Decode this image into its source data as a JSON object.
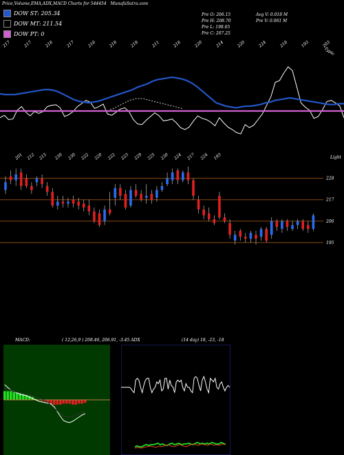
{
  "header": {
    "title": "Price,Volume,EMA,ADX,MACD Charts for 544454",
    "site": "MunafaSutra.com"
  },
  "legend": [
    {
      "label": "DOW ST: 205.34",
      "color": "#2457c9"
    },
    {
      "label": "DOW MT: 211.54",
      "color": "#000000"
    },
    {
      "label": "DOW PT: 0",
      "color": "#d060d0"
    }
  ],
  "price_info": {
    "open": "Pre O: 206.15",
    "high": "Pre H: 208.70",
    "low": "Pre L: 198.65",
    "close": "Pre C: 207.25",
    "avg_vol": "Avg V: 0.018 M",
    "pre_vol": "Pre V: 0.061 M"
  },
  "panel_labels": {
    "macd": "MACD:",
    "macd_values": "( 12,26,9 ) 208.46, 206.91, -3.45 ADX",
    "adx_values": "(14 day) 18, -23, -18",
    "top_right": "Typic",
    "top_right2": "Light"
  },
  "chart_data": [
    {
      "type": "line",
      "name": "EMA panel",
      "top_tick_labels": [
        "217",
        "217",
        "216",
        "217",
        "216",
        "218",
        "218",
        "211",
        "216",
        "220",
        "214",
        "220",
        "224",
        "218",
        "193",
        "203"
      ],
      "y_levels": [],
      "series": [
        {
          "name": "",
          "color": "#ffffff",
          "values": [
            38,
            42,
            35,
            36,
            50,
            56,
            47,
            41,
            48,
            45,
            48,
            56,
            58,
            59,
            54,
            40,
            43,
            48,
            56,
            61,
            66,
            63,
            53,
            56,
            60,
            44,
            42,
            47,
            52,
            54,
            48,
            35,
            28,
            27,
            34,
            40,
            46,
            41,
            33,
            34,
            36,
            30,
            22,
            19,
            23,
            33,
            41,
            37,
            35,
            31,
            25,
            38,
            30,
            23,
            19,
            14,
            12,
            27,
            22,
            26,
            35,
            44,
            58,
            72,
            95,
            98,
            110,
            120,
            114,
            88,
            62,
            55,
            50,
            37,
            40,
            51,
            64,
            66,
            62,
            57,
            38
          ]
        },
        {
          "name": "",
          "color": "#2457c9",
          "values": [
            60,
            61,
            61,
            61,
            60,
            59,
            58,
            57,
            56,
            55,
            55,
            56,
            58,
            61,
            64,
            67,
            69,
            70,
            71,
            70,
            69,
            67,
            65,
            63,
            61,
            59,
            57,
            55,
            52,
            50,
            48,
            45,
            43,
            42,
            41,
            40,
            41,
            42,
            44,
            47,
            51,
            56,
            61,
            66,
            71,
            73,
            75,
            76,
            77,
            76,
            75,
            75,
            74,
            73,
            71,
            70,
            68,
            67,
            66,
            65,
            66,
            67,
            68,
            69,
            70,
            71,
            72,
            73,
            73,
            72,
            72
          ]
        },
        {
          "name": "",
          "color": "#cccccc",
          "values": [
            75,
            74,
            72,
            70,
            68,
            66,
            64,
            62,
            60,
            58,
            57,
            56,
            55,
            55,
            55,
            55,
            56,
            57,
            58,
            59,
            60,
            61,
            62,
            63,
            64,
            65,
            66,
            67,
            68,
            69,
            70,
            71,
            72,
            73
          ]
        },
        {
          "name": "",
          "color": "#d060d0",
          "values": [
            61,
            61,
            61,
            61,
            61,
            61,
            61,
            61,
            61,
            61,
            61
          ]
        }
      ]
    },
    {
      "type": "candlestick",
      "name": "Price panel",
      "top_tick_labels": [
        "201",
        "212",
        "215",
        "230",
        "230",
        "222",
        "220",
        "222",
        "223",
        "229",
        "225",
        "230",
        "224",
        "217",
        "224",
        "193"
      ],
      "y_labels": [
        "228",
        "217",
        "206",
        "195"
      ],
      "y_values": [
        228,
        217,
        206,
        195
      ],
      "ylim": [
        190,
        236
      ],
      "candles": [
        {
          "o": 222,
          "c": 226,
          "h": 229,
          "l": 220,
          "up": true
        },
        {
          "o": 229,
          "c": 227,
          "h": 232,
          "l": 225,
          "up": false
        },
        {
          "o": 227,
          "c": 230,
          "h": 233,
          "l": 224,
          "up": true
        },
        {
          "o": 231,
          "c": 224,
          "h": 233,
          "l": 222,
          "up": false
        },
        {
          "o": 228,
          "c": 224,
          "h": 230,
          "l": 223,
          "up": false
        },
        {
          "o": 224,
          "c": 222,
          "h": 226,
          "l": 220,
          "up": false
        },
        {
          "o": 226,
          "c": 228,
          "h": 229,
          "l": 224,
          "up": true
        },
        {
          "o": 228,
          "c": 225,
          "h": 230,
          "l": 223,
          "up": false
        },
        {
          "o": 224,
          "c": 221,
          "h": 226,
          "l": 219,
          "up": false
        },
        {
          "o": 221,
          "c": 214,
          "h": 223,
          "l": 213,
          "up": false
        },
        {
          "o": 214,
          "c": 216,
          "h": 219,
          "l": 212,
          "up": true
        },
        {
          "o": 216,
          "c": 215,
          "h": 219,
          "l": 213,
          "up": false
        },
        {
          "o": 215,
          "c": 216,
          "h": 218,
          "l": 213,
          "up": true
        },
        {
          "o": 217,
          "c": 215,
          "h": 219,
          "l": 213,
          "up": false
        },
        {
          "o": 216,
          "c": 214,
          "h": 218,
          "l": 212,
          "up": false
        },
        {
          "o": 215,
          "c": 213,
          "h": 217,
          "l": 211,
          "up": false
        },
        {
          "o": 214,
          "c": 211,
          "h": 217,
          "l": 209,
          "up": false
        },
        {
          "o": 211,
          "c": 206,
          "h": 213,
          "l": 205,
          "up": false
        },
        {
          "o": 210,
          "c": 204,
          "h": 212,
          "l": 203,
          "up": false
        },
        {
          "o": 206,
          "c": 212,
          "h": 214,
          "l": 204,
          "up": true
        },
        {
          "o": 212,
          "c": 210,
          "h": 221,
          "l": 209,
          "up": false
        },
        {
          "o": 218,
          "c": 223,
          "h": 225,
          "l": 214,
          "up": true
        },
        {
          "o": 223,
          "c": 219,
          "h": 225,
          "l": 217,
          "up": false
        },
        {
          "o": 220,
          "c": 213,
          "h": 222,
          "l": 212,
          "up": false
        },
        {
          "o": 214,
          "c": 222,
          "h": 224,
          "l": 213,
          "up": true
        },
        {
          "o": 222,
          "c": 219,
          "h": 225,
          "l": 218,
          "up": false
        },
        {
          "o": 220,
          "c": 217,
          "h": 222,
          "l": 216,
          "up": false
        },
        {
          "o": 218,
          "c": 219,
          "h": 225,
          "l": 215,
          "up": true
        },
        {
          "o": 220,
          "c": 217,
          "h": 222,
          "l": 215,
          "up": false
        },
        {
          "o": 218,
          "c": 222,
          "h": 224,
          "l": 216,
          "up": true
        },
        {
          "o": 222,
          "c": 224,
          "h": 226,
          "l": 221,
          "up": true
        },
        {
          "o": 225,
          "c": 228,
          "h": 231,
          "l": 224,
          "up": true
        },
        {
          "o": 227,
          "c": 231,
          "h": 233,
          "l": 225,
          "up": true
        },
        {
          "o": 232,
          "c": 227,
          "h": 233,
          "l": 225,
          "up": false
        },
        {
          "o": 227,
          "c": 231,
          "h": 232,
          "l": 226,
          "up": true
        },
        {
          "o": 231,
          "c": 227,
          "h": 234,
          "l": 225,
          "up": false
        },
        {
          "o": 227,
          "c": 219,
          "h": 228,
          "l": 217,
          "up": false
        },
        {
          "o": 217,
          "c": 212,
          "h": 219,
          "l": 210,
          "up": false
        },
        {
          "o": 212,
          "c": 209,
          "h": 214,
          "l": 207,
          "up": false
        },
        {
          "o": 210,
          "c": 207,
          "h": 213,
          "l": 206,
          "up": false
        },
        {
          "o": 207,
          "c": 205,
          "h": 209,
          "l": 204,
          "up": false
        },
        {
          "o": 219,
          "c": 208,
          "h": 221,
          "l": 207,
          "up": false
        },
        {
          "o": 208,
          "c": 206,
          "h": 210,
          "l": 205,
          "up": false
        },
        {
          "o": 205,
          "c": 199,
          "h": 207,
          "l": 197,
          "up": false
        },
        {
          "o": 196,
          "c": 199,
          "h": 201,
          "l": 194,
          "up": true
        },
        {
          "o": 201,
          "c": 198,
          "h": 202,
          "l": 196,
          "up": false
        },
        {
          "o": 198,
          "c": 197,
          "h": 200,
          "l": 195,
          "up": false
        },
        {
          "o": 197,
          "c": 200,
          "h": 201,
          "l": 195,
          "up": true
        },
        {
          "o": 199,
          "c": 197,
          "h": 201,
          "l": 194,
          "up": false
        },
        {
          "o": 198,
          "c": 202,
          "h": 203,
          "l": 196,
          "up": true
        },
        {
          "o": 202,
          "c": 196,
          "h": 203,
          "l": 195,
          "up": false
        },
        {
          "o": 199,
          "c": 206,
          "h": 208,
          "l": 197,
          "up": true
        },
        {
          "o": 206,
          "c": 203,
          "h": 207,
          "l": 201,
          "up": false
        },
        {
          "o": 202,
          "c": 206,
          "h": 207,
          "l": 200,
          "up": true
        },
        {
          "o": 206,
          "c": 203,
          "h": 207,
          "l": 201,
          "up": false
        },
        {
          "o": 202,
          "c": 204,
          "h": 206,
          "l": 201,
          "up": true
        },
        {
          "o": 204,
          "c": 206,
          "h": 207,
          "l": 202,
          "up": true
        },
        {
          "o": 206,
          "c": 202,
          "h": 207,
          "l": 201,
          "up": false
        },
        {
          "o": 204,
          "c": 202,
          "h": 206,
          "l": 200,
          "up": false
        },
        {
          "o": 202,
          "c": 209,
          "h": 210,
          "l": 201,
          "up": true
        }
      ]
    },
    {
      "type": "bar",
      "name": "MACD panel",
      "histogram": [
        9,
        9,
        9,
        8,
        8,
        7,
        6,
        5,
        4,
        3,
        1,
        0,
        -1,
        -2,
        -3,
        -4,
        -5,
        -5,
        -5,
        -4,
        -4,
        -4,
        -5,
        -5,
        -4,
        -4,
        -3
      ],
      "macd_line": [
        -22,
        -18,
        -14,
        -12,
        -10,
        -8,
        -7,
        -6,
        -4,
        -2,
        0,
        2,
        3,
        4,
        5,
        6,
        10,
        17,
        24,
        30,
        32,
        33,
        31,
        28,
        25,
        22,
        20
      ],
      "signal_line": [
        -18,
        -16,
        -14,
        -12,
        -11,
        -10,
        -9,
        -8,
        -7,
        -6,
        -5,
        -3,
        -1,
        1,
        4,
        8,
        12,
        16,
        20,
        23,
        25,
        25,
        24,
        22,
        20,
        18,
        17
      ]
    },
    {
      "type": "line",
      "name": "ADX panel",
      "series": [
        {
          "name": "",
          "color": "#ffffff",
          "values": [
            14,
            14,
            14,
            14,
            14,
            14,
            13,
            10,
            8,
            22,
            24,
            22,
            14,
            8,
            16,
            22,
            24,
            24,
            14,
            8,
            12,
            14,
            20,
            18,
            22,
            10,
            12,
            24,
            24,
            12,
            22,
            16,
            14,
            8,
            20,
            22,
            20,
            22,
            14,
            10,
            18,
            14,
            14,
            10,
            8,
            24,
            26,
            24,
            16,
            10,
            22,
            26,
            20,
            12,
            8,
            24,
            22,
            20,
            24,
            14,
            12,
            18,
            20,
            14,
            10,
            14,
            16,
            14
          ]
        },
        {
          "name": "",
          "color": "#20e020",
          "values": [
            2,
            3,
            2,
            2,
            4,
            5,
            4,
            5,
            5,
            6,
            7,
            5,
            6,
            4,
            4,
            6,
            7,
            5,
            6,
            7,
            5,
            6,
            6,
            7,
            6,
            5,
            7,
            8,
            6,
            7,
            6,
            7,
            6,
            8,
            7,
            6,
            6,
            8,
            7,
            5
          ]
        },
        {
          "name": "",
          "color": "#e04020",
          "values": [
            0,
            1,
            0,
            1,
            2,
            3,
            2,
            1,
            3,
            2,
            4,
            5,
            3,
            2,
            4,
            5,
            3,
            2,
            4,
            6,
            5,
            4,
            6,
            5,
            4,
            6,
            4,
            5,
            4,
            6,
            5
          ]
        }
      ]
    }
  ]
}
